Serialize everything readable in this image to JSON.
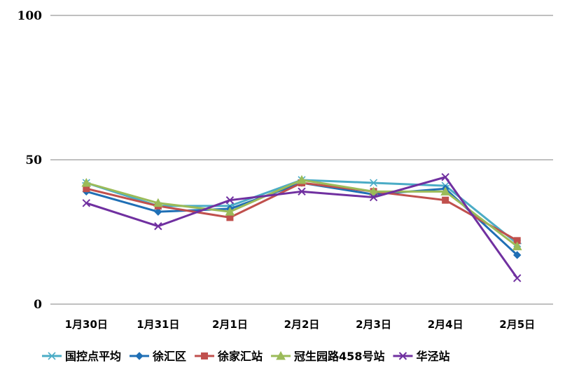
{
  "chart_data": {
    "type": "line",
    "categories": [
      "1月30日",
      "1月31日",
      "2月1日",
      "2月2日",
      "2月3日",
      "2月4日",
      "2月5日"
    ],
    "ylim": [
      0,
      100
    ],
    "yticks": [
      0,
      50,
      100
    ],
    "grid": true,
    "legend_position": "bottom",
    "series": [
      {
        "name": "国控点平均",
        "color": "#4bacc6",
        "marker": "star",
        "values": [
          42,
          34,
          34,
          43,
          42,
          41,
          21
        ]
      },
      {
        "name": "徐汇区",
        "color": "#1f6fb5",
        "marker": "diamond",
        "values": [
          39,
          32,
          33,
          42,
          38,
          40,
          17
        ]
      },
      {
        "name": "徐家汇站",
        "color": "#c0504d",
        "marker": "square",
        "values": [
          40,
          34,
          30,
          42,
          39,
          36,
          22
        ]
      },
      {
        "name": "冠生园路458号站",
        "color": "#9bbb59",
        "marker": "triangle",
        "values": [
          42,
          35,
          32,
          43,
          39,
          39,
          20
        ]
      },
      {
        "name": "华泾站",
        "color": "#7030a0",
        "marker": "x",
        "values": [
          35,
          27,
          36,
          39,
          37,
          44,
          9
        ]
      }
    ]
  }
}
